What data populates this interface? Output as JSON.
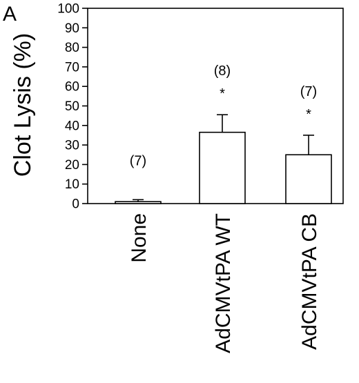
{
  "panel_label": "A",
  "chart_data": {
    "type": "bar",
    "categories": [
      "None",
      "AdCMVtPA WT",
      "AdCMVtPA CB"
    ],
    "values": [
      1,
      36.5,
      25
    ],
    "error": [
      1,
      9,
      10
    ],
    "n_labels": [
      "(7)",
      "(8)",
      "(7)"
    ],
    "significance": [
      "",
      "*",
      "*"
    ],
    "ylabel": "Clot Lysis (%)",
    "xlabel": "",
    "ylim": [
      0,
      100
    ],
    "yticks": [
      "0",
      "10",
      "20",
      "30",
      "40",
      "50",
      "60",
      "70",
      "80",
      "90",
      "100"
    ],
    "grid": false,
    "legend": "none",
    "bar_fill": "#ffffff",
    "bar_stroke": "#000000"
  }
}
